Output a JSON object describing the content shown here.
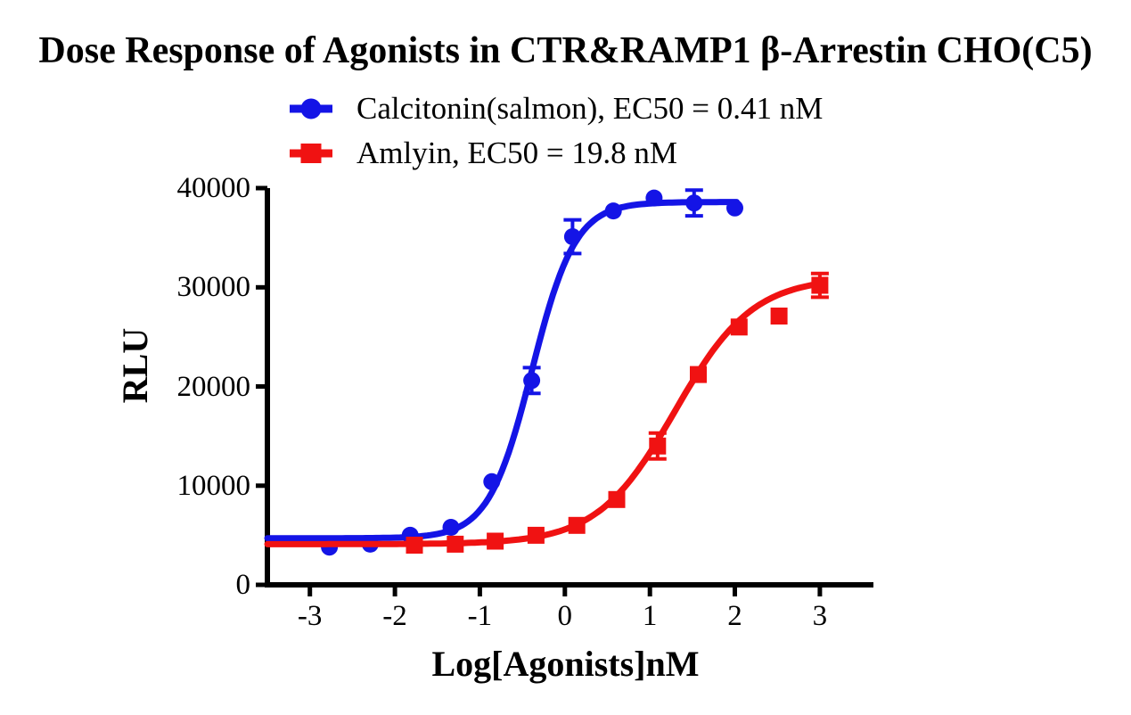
{
  "chart_data": {
    "type": "line",
    "title": "Dose Response of Agonists in CTR&RAMP1 β-Arrestin CHO(C5)",
    "xlabel": "Log[Agonists]nM",
    "ylabel": "RLU",
    "xlim": [
      -3.5,
      3.63
    ],
    "ylim": [
      0,
      40000
    ],
    "x_ticks": [
      -3,
      -2,
      -1,
      0,
      1,
      2,
      3
    ],
    "y_ticks": [
      0,
      10000,
      20000,
      30000,
      40000
    ],
    "grid": false,
    "legend_position": "top-center",
    "axis_color": "#000000",
    "series": [
      {
        "name": "Calcitonin(salmon)",
        "legend_label": "Calcitonin(salmon), EC50 = 0.41 nM",
        "ec50_nM": 0.41,
        "color": "#1414E6",
        "marker": "circle",
        "fit": {
          "bottom": 4700,
          "top": 38600,
          "log_ec50": -0.387,
          "hill": 1.7,
          "curve_x_end": 2.05
        },
        "points": [
          {
            "x": -2.77,
            "y": 3800
          },
          {
            "x": -2.29,
            "y": 4100
          },
          {
            "x": -1.82,
            "y": 5000
          },
          {
            "x": -1.34,
            "y": 5800
          },
          {
            "x": -0.86,
            "y": 10400
          },
          {
            "x": -0.39,
            "y": 20600,
            "err": 1300
          },
          {
            "x": 0.09,
            "y": 35100,
            "err": 1700
          },
          {
            "x": 0.57,
            "y": 37700
          },
          {
            "x": 1.05,
            "y": 39000
          },
          {
            "x": 1.52,
            "y": 38500,
            "err": 1300
          },
          {
            "x": 2.0,
            "y": 38000
          }
        ]
      },
      {
        "name": "Amlyin",
        "legend_label": "Amlyin, EC50 = 19.8 nM",
        "ec50_nM": 19.8,
        "color": "#F01212",
        "marker": "square",
        "fit": {
          "bottom": 4100,
          "top": 31000,
          "log_ec50": 1.297,
          "hill": 0.95,
          "curve_x_end": 3.03
        },
        "points": [
          {
            "x": -1.77,
            "y": 4000
          },
          {
            "x": -1.29,
            "y": 4100
          },
          {
            "x": -0.82,
            "y": 4400
          },
          {
            "x": -0.34,
            "y": 5000
          },
          {
            "x": 0.14,
            "y": 6000
          },
          {
            "x": 0.61,
            "y": 8600
          },
          {
            "x": 1.09,
            "y": 14000,
            "err": 1300
          },
          {
            "x": 1.57,
            "y": 21200
          },
          {
            "x": 2.05,
            "y": 26000
          },
          {
            "x": 2.52,
            "y": 27100
          },
          {
            "x": 3.0,
            "y": 30200,
            "err": 1200
          }
        ]
      }
    ]
  }
}
